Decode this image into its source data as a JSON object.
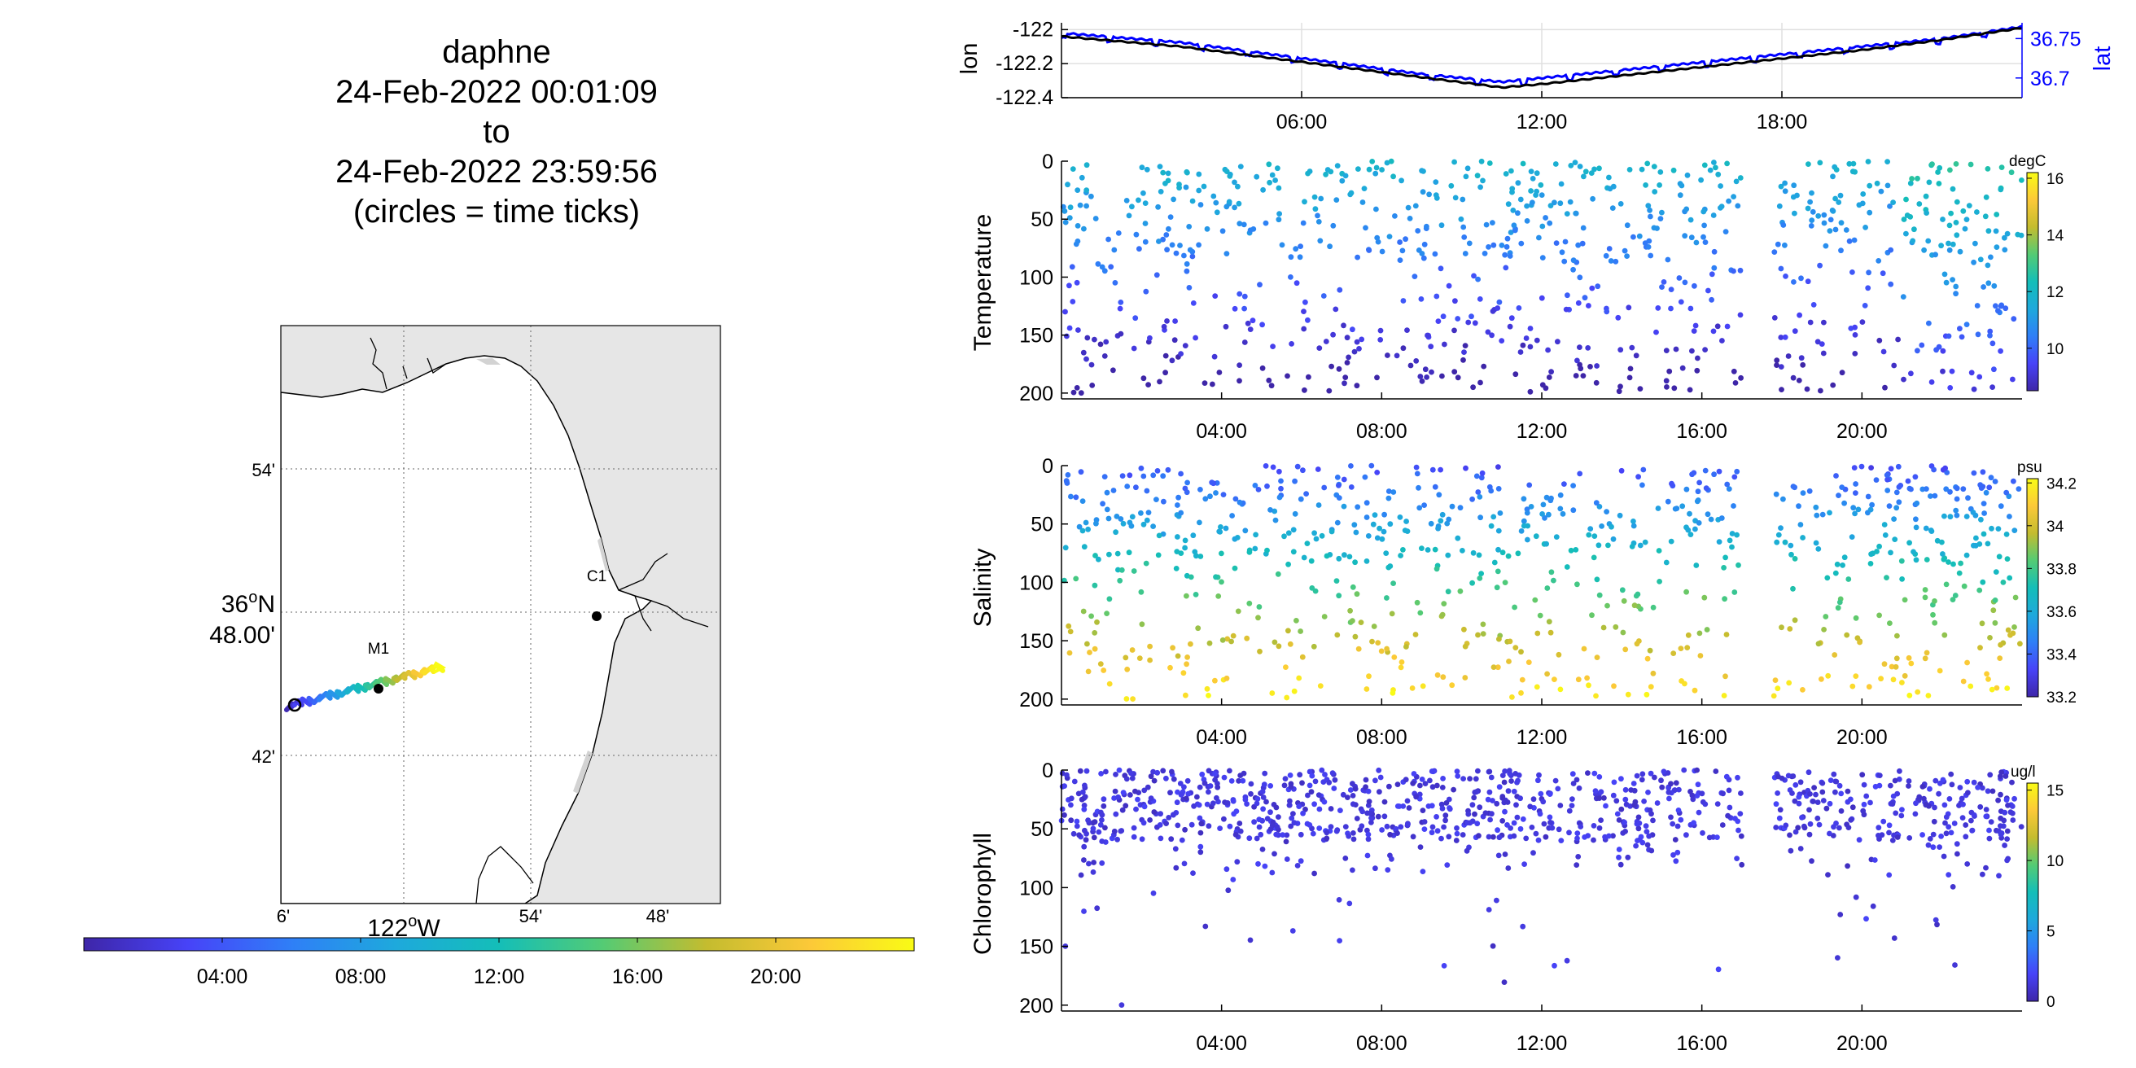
{
  "title_lines": [
    "daphne",
    "24-Feb-2022 00:01:09",
    "to",
    "24-Feb-2022 23:59:56",
    "(circles = time ticks)"
  ],
  "colors": {
    "parula": [
      "#3e26a8",
      "#4743f8",
      "#2f7ff7",
      "#1ea9dc",
      "#14beb8",
      "#54cb74",
      "#c4bc2f",
      "#fcc938",
      "#f9fb15"
    ],
    "lon_line": "#000000",
    "lat_line": "#0000ff",
    "coast_fill": "#e6e6e6",
    "grid": "#e0e0e0"
  },
  "map": {
    "lat_ticks": [
      "54'",
      "42'"
    ],
    "lat_center_label_deg": "36",
    "lat_center_label_sup": "o",
    "lat_center_label_hem": "N",
    "lat_center_label_min": "48.00'",
    "lon_ticks": [
      "6'",
      "54'",
      "48'"
    ],
    "lon_center_label_deg": "122",
    "lon_center_label_sup": "o",
    "lon_center_label_hem": "W",
    "stations": [
      {
        "name": "M1"
      },
      {
        "name": "C1"
      }
    ]
  },
  "time_colorbar": {
    "ticks": [
      "04:00",
      "08:00",
      "12:00",
      "16:00",
      "20:00"
    ],
    "tick_hours": [
      4,
      8,
      12,
      16,
      20
    ]
  },
  "chart_data": [
    {
      "type": "line",
      "name": "position",
      "x_unit": "hour of day",
      "xlim": [
        0,
        24
      ],
      "x_ticks": [
        "06:00",
        "12:00",
        "18:00"
      ],
      "x_tick_hours": [
        6,
        12,
        18
      ],
      "ylabel_left": "lon",
      "ylabel_right": "lat",
      "ylim_left": [
        -122.4,
        -121.96
      ],
      "ylim_right": [
        36.675,
        36.77
      ],
      "y_ticks_left": [
        "-122",
        "-122.2",
        "-122.4"
      ],
      "y_tick_vals_left": [
        -122,
        -122.2,
        -122.4
      ],
      "y_ticks_right": [
        "36.75",
        "36.7"
      ],
      "y_tick_vals_right": [
        36.75,
        36.7
      ],
      "series": [
        {
          "name": "lon",
          "x": [
            0,
            3,
            6,
            9,
            11,
            12,
            14,
            16,
            18,
            20,
            22,
            24
          ],
          "values": [
            -122.04,
            -122.1,
            -122.19,
            -122.28,
            -122.34,
            -122.32,
            -122.27,
            -122.22,
            -122.17,
            -122.12,
            -122.06,
            -121.99
          ]
        },
        {
          "name": "lat",
          "x": [
            0,
            3,
            6,
            9,
            11,
            12,
            14,
            16,
            18,
            20,
            22,
            24
          ],
          "values": [
            36.757,
            36.745,
            36.725,
            36.705,
            36.695,
            36.7,
            36.71,
            36.72,
            36.73,
            36.74,
            36.75,
            36.765
          ]
        }
      ]
    },
    {
      "type": "scatter",
      "name": "temperature",
      "ylabel": "Temperature",
      "ylim": [
        205,
        0
      ],
      "y_ticks": [
        "0",
        "50",
        "100",
        "150",
        "200"
      ],
      "y_tick_vals": [
        0,
        50,
        100,
        150,
        200
      ],
      "x_ticks": [
        "04:00",
        "08:00",
        "12:00",
        "16:00",
        "20:00"
      ],
      "x_tick_hours": [
        4,
        8,
        12,
        16,
        20
      ],
      "xlim": [
        0,
        24
      ],
      "gaps": [
        [
          17,
          17.8
        ]
      ],
      "colorbar_unit": "degC",
      "clim": [
        8.5,
        16.2
      ],
      "colorbar_ticks": [
        "16",
        "14",
        "12",
        "10"
      ],
      "colorbar_tick_vals": [
        16,
        14,
        12,
        10
      ],
      "profile": "temperature"
    },
    {
      "type": "scatter",
      "name": "salinity",
      "ylabel": "Salinity",
      "ylim": [
        205,
        0
      ],
      "y_ticks": [
        "0",
        "50",
        "100",
        "150",
        "200"
      ],
      "y_tick_vals": [
        0,
        50,
        100,
        150,
        200
      ],
      "x_ticks": [
        "04:00",
        "08:00",
        "12:00",
        "16:00",
        "20:00"
      ],
      "x_tick_hours": [
        4,
        8,
        12,
        16,
        20
      ],
      "xlim": [
        0,
        24
      ],
      "gaps": [
        [
          17,
          17.8
        ]
      ],
      "colorbar_unit": "psu",
      "clim": [
        33.2,
        34.22
      ],
      "colorbar_ticks": [
        "34.2",
        "34",
        "33.8",
        "33.6",
        "33.4",
        "33.2"
      ],
      "colorbar_tick_vals": [
        34.2,
        34,
        33.8,
        33.6,
        33.4,
        33.2
      ],
      "profile": "salinity"
    },
    {
      "type": "scatter",
      "name": "chlorophyll",
      "ylabel": "Chlorophyll",
      "ylim": [
        205,
        0
      ],
      "y_ticks": [
        "0",
        "50",
        "100",
        "150",
        "200"
      ],
      "y_tick_vals": [
        0,
        50,
        100,
        150,
        200
      ],
      "x_ticks": [
        "04:00",
        "08:00",
        "12:00",
        "16:00",
        "20:00"
      ],
      "x_tick_hours": [
        4,
        8,
        12,
        16,
        20
      ],
      "xlim": [
        0,
        24
      ],
      "gaps": [
        [
          17,
          17.8
        ]
      ],
      "colorbar_unit": "ug/l",
      "clim": [
        0,
        15.5
      ],
      "colorbar_ticks": [
        "15",
        "10",
        "5",
        "0"
      ],
      "colorbar_tick_vals": [
        15,
        10,
        5,
        0
      ],
      "profile": "chlorophyll"
    }
  ]
}
